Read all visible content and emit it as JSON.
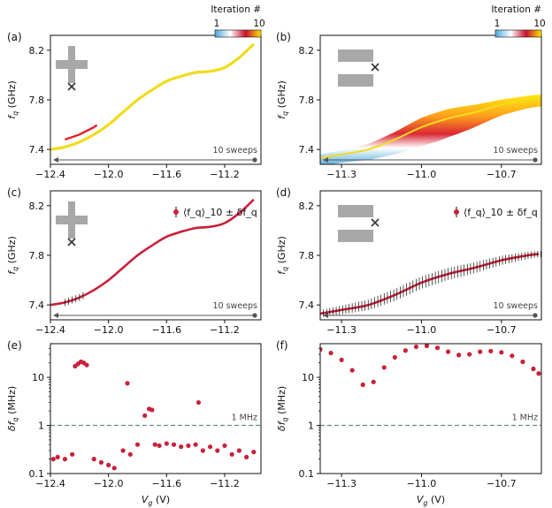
{
  "colorbar": {
    "title": "Iteration #",
    "min_label": "1",
    "max_label": "10",
    "colors": [
      "#4aa8e0",
      "#ffffff",
      "#c8102e",
      "#ffe800"
    ]
  },
  "annotations": {
    "sweeps": "10 sweeps",
    "threshold": "1 MHz",
    "legend_c": "⟨f_q⟩_10 ± δf_q",
    "legend_d": "⟨f_q⟩_10 ± δf_q"
  },
  "colors": {
    "data": "#c8203a",
    "yellow": "#f0dc1e",
    "arrow": "#555555",
    "inset": "#a8a8a8",
    "dashed": "#6a8a8a"
  },
  "chart_data": [
    {
      "panel": "(a)",
      "type": "line",
      "ylabel": "f_q (GHz)",
      "xlabel": "",
      "xlim": [
        -12.4,
        -10.95
      ],
      "ylim": [
        7.28,
        8.32
      ],
      "xticks": [
        "−12.4",
        "−12.0",
        "−11.6",
        "−11.2"
      ],
      "yticks": [
        "7.4",
        "7.8",
        "8.2"
      ],
      "x": [
        -12.4,
        -12.3,
        -12.2,
        -12.1,
        -12.0,
        -11.9,
        -11.8,
        -11.7,
        -11.6,
        -11.5,
        -11.4,
        -11.3,
        -11.2,
        -11.1,
        -11.0
      ],
      "y": [
        7.4,
        7.42,
        7.46,
        7.52,
        7.6,
        7.7,
        7.8,
        7.88,
        7.95,
        7.99,
        8.02,
        8.03,
        8.06,
        8.14,
        8.25
      ]
    },
    {
      "panel": "(b)",
      "type": "line",
      "ylabel": "f_q (GHz)",
      "xlabel": "",
      "xlim": [
        -11.38,
        -10.55
      ],
      "ylim": [
        7.28,
        8.32
      ],
      "xticks": [
        "−11.3",
        "−11.0",
        "−10.7"
      ],
      "yticks": [
        "7.4",
        "7.8",
        "8.2"
      ],
      "x": [
        -11.38,
        -11.3,
        -11.2,
        -11.1,
        -11.0,
        -10.9,
        -10.8,
        -10.7,
        -10.6,
        -10.56
      ],
      "y": [
        7.33,
        7.36,
        7.4,
        7.48,
        7.58,
        7.65,
        7.7,
        7.76,
        7.8,
        7.81
      ]
    },
    {
      "panel": "(c)",
      "type": "line",
      "ylabel": "f_q (GHz)",
      "xlabel": "",
      "xlim": [
        -12.4,
        -10.95
      ],
      "ylim": [
        7.28,
        8.32
      ],
      "xticks": [
        "−12.4",
        "−12.0",
        "−11.6",
        "−11.2"
      ],
      "yticks": [
        "7.4",
        "7.8",
        "8.2"
      ],
      "x": [
        -12.4,
        -12.3,
        -12.2,
        -12.1,
        -12.0,
        -11.9,
        -11.8,
        -11.7,
        -11.6,
        -11.5,
        -11.4,
        -11.3,
        -11.2,
        -11.1,
        -11.0
      ],
      "y": [
        7.4,
        7.42,
        7.46,
        7.52,
        7.6,
        7.7,
        7.8,
        7.88,
        7.95,
        7.99,
        8.02,
        8.03,
        8.06,
        8.14,
        8.25
      ]
    },
    {
      "panel": "(d)",
      "type": "line",
      "ylabel": "f_q (GHz)",
      "xlabel": "",
      "xlim": [
        -11.38,
        -10.55
      ],
      "ylim": [
        7.28,
        8.32
      ],
      "xticks": [
        "−11.3",
        "−11.0",
        "−10.7"
      ],
      "yticks": [
        "7.4",
        "7.8",
        "8.2"
      ],
      "x": [
        -11.38,
        -11.3,
        -11.2,
        -11.1,
        -11.0,
        -10.9,
        -10.8,
        -10.7,
        -10.6,
        -10.56
      ],
      "y": [
        7.33,
        7.36,
        7.4,
        7.48,
        7.58,
        7.65,
        7.7,
        7.76,
        7.8,
        7.81
      ]
    },
    {
      "panel": "(e)",
      "type": "scatter",
      "ylabel": "δf_q (MHz)",
      "xlabel": "V_g (V)",
      "xlim": [
        -12.4,
        -10.95
      ],
      "ylim": [
        0.1,
        50
      ],
      "yscale": "log",
      "xticks": [
        "−12.4",
        "−12.0",
        "−11.6",
        "−11.2"
      ],
      "yticks": [
        "0.1",
        "1",
        "10"
      ],
      "x": [
        -12.38,
        -12.35,
        -12.3,
        -12.25,
        -12.23,
        -12.21,
        -12.19,
        -12.17,
        -12.15,
        -12.1,
        -12.05,
        -12.0,
        -11.96,
        -11.9,
        -11.87,
        -11.85,
        -11.8,
        -11.75,
        -11.72,
        -11.7,
        -11.68,
        -11.65,
        -11.6,
        -11.55,
        -11.5,
        -11.45,
        -11.4,
        -11.38,
        -11.35,
        -11.3,
        -11.25,
        -11.2,
        -11.15,
        -11.1,
        -11.05,
        -11.0
      ],
      "y": [
        0.2,
        0.22,
        0.2,
        0.25,
        17,
        19,
        21,
        20,
        18,
        0.2,
        0.17,
        0.15,
        0.13,
        0.3,
        7.5,
        0.25,
        0.4,
        1.6,
        2.2,
        2.1,
        0.4,
        0.38,
        0.42,
        0.4,
        0.36,
        0.38,
        0.4,
        3,
        0.3,
        0.36,
        0.3,
        0.38,
        0.25,
        0.3,
        0.22,
        0.28
      ]
    },
    {
      "panel": "(f)",
      "type": "scatter",
      "ylabel": "δf_q (MHz)",
      "xlabel": "V_g (V)",
      "xlim": [
        -11.38,
        -10.55
      ],
      "ylim": [
        0.1,
        50
      ],
      "yscale": "log",
      "xticks": [
        "−11.3",
        "−11.0",
        "−10.7"
      ],
      "yticks": [
        "0.1",
        "1",
        "10"
      ],
      "x": [
        -11.38,
        -11.34,
        -11.3,
        -11.26,
        -11.22,
        -11.18,
        -11.14,
        -11.1,
        -11.06,
        -11.02,
        -10.98,
        -10.94,
        -10.9,
        -10.86,
        -10.82,
        -10.78,
        -10.74,
        -10.7,
        -10.66,
        -10.62,
        -10.58,
        -10.56
      ],
      "y": [
        38,
        32,
        23,
        14,
        7,
        8,
        16,
        26,
        36,
        43,
        45,
        41,
        34,
        29,
        30,
        34,
        35,
        33,
        28,
        21,
        15,
        12
      ]
    }
  ]
}
